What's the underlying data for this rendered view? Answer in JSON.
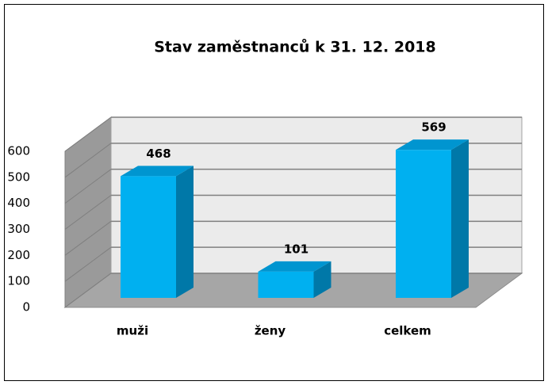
{
  "chart_data": {
    "type": "bar",
    "title": "Stav zaměstnanců k 31. 12. 2018",
    "categories": [
      "muži",
      "ženy",
      "celkem"
    ],
    "values": [
      468,
      101,
      569
    ],
    "color": "#00b0f0",
    "ylim": [
      0,
      600
    ],
    "yticks": [
      0,
      100,
      200,
      300,
      400,
      500,
      600
    ],
    "grid": true
  }
}
